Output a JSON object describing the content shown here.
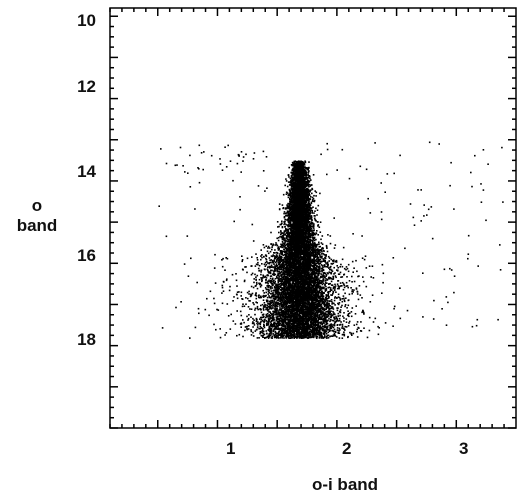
{
  "chart_data": {
    "type": "scatter",
    "title": "",
    "xlabel": "o-i band",
    "ylabel_line1": "o",
    "ylabel_line2": "band",
    "xlim": [
      0.1,
      3.5
    ],
    "ylim": [
      20,
      9.8
    ],
    "y_inverted": true,
    "x_tick_labels": [
      "1",
      "2",
      "3"
    ],
    "y_tick_labels": [
      "10",
      "12",
      "14",
      "16",
      "18"
    ],
    "grid": false,
    "legend": "none",
    "series": [
      {
        "point_color": "#000000",
        "density_core": {
          "x_center": 1.68,
          "x_spread_bright": 0.04,
          "x_spread_faint": 0.16,
          "y_min": 13.5,
          "y_max": 17.8
        },
        "sparse_field": {
          "x_range": [
            0.5,
            3.4
          ],
          "y_range": [
            13.0,
            17.8
          ]
        }
      }
    ]
  }
}
